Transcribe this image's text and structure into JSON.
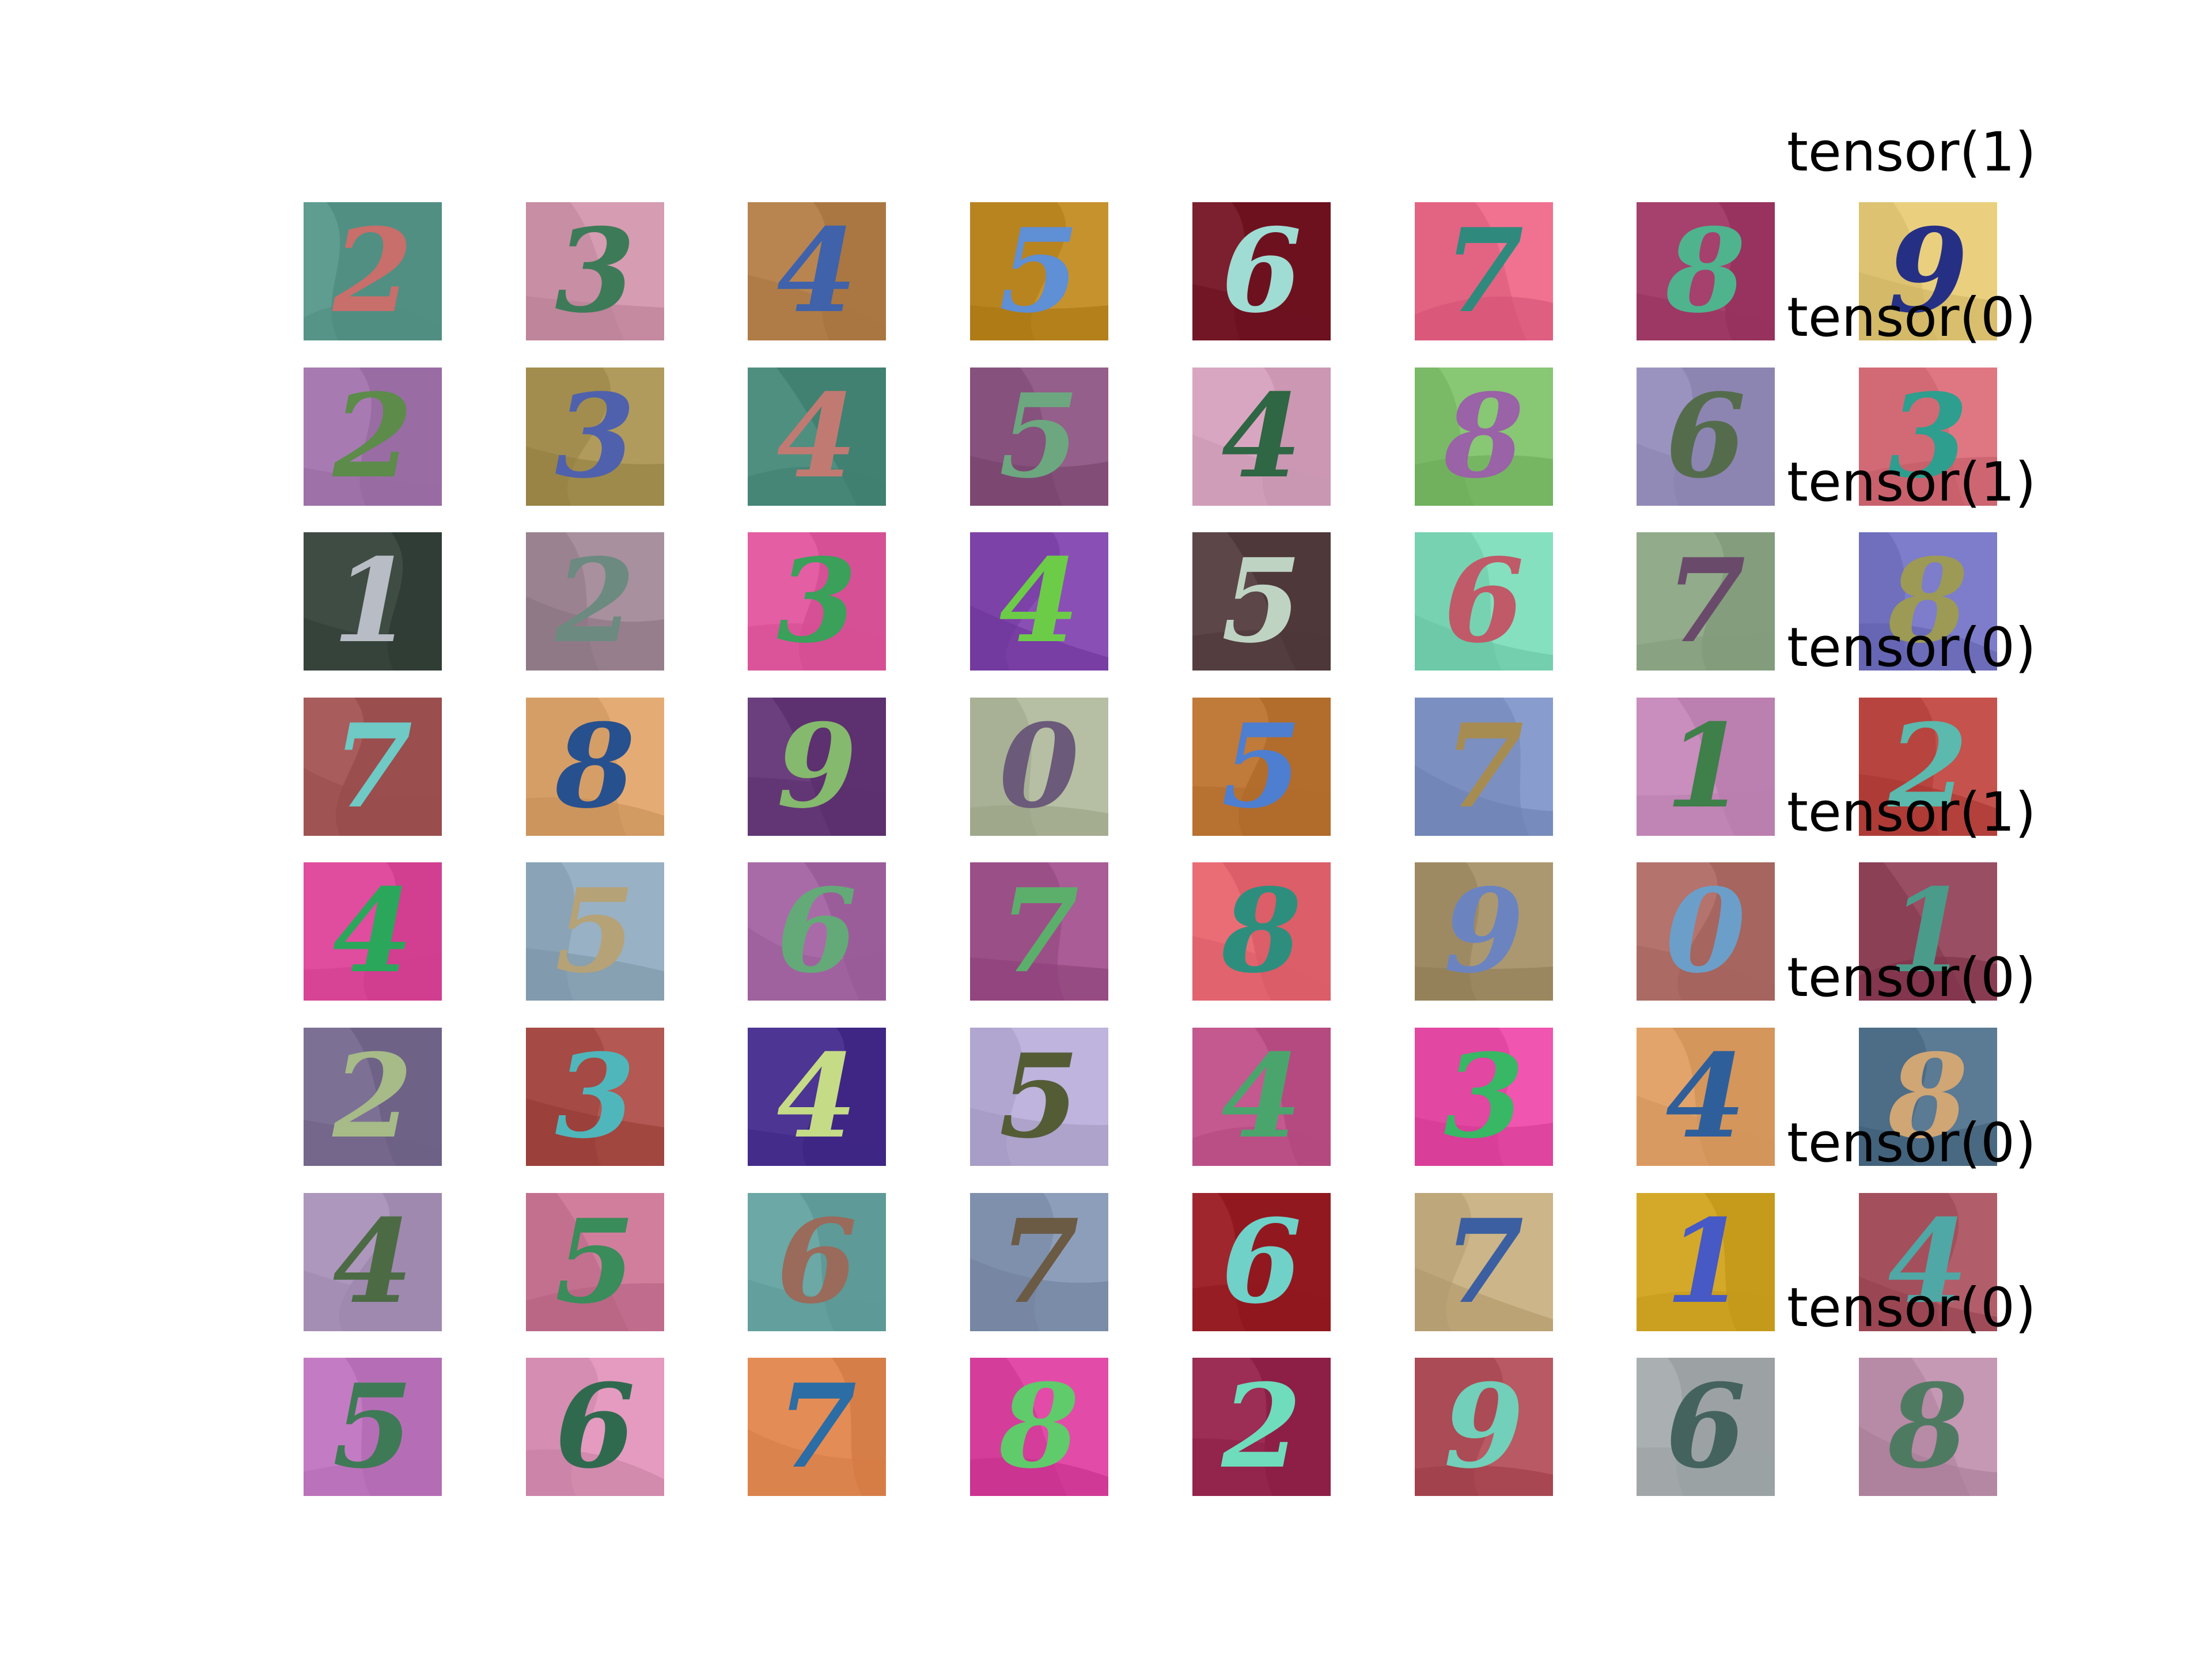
{
  "labels": [
    "tensor(1)",
    "tensor(0)",
    "tensor(1)",
    "tensor(0)",
    "tensor(1)",
    "tensor(0)",
    "tensor(0)",
    "tensor(0)"
  ],
  "tiles": [
    [
      {
        "digit": "2",
        "bg": "#5f9d91",
        "fg": "#c86e6b"
      },
      {
        "digit": "3",
        "bg": "#c88ea3",
        "fg": "#3d7b58"
      },
      {
        "digit": "4",
        "bg": "#b88550",
        "fg": "#3f62ab"
      },
      {
        "digit": "5",
        "bg": "#b88420",
        "fg": "#5f8fd4"
      },
      {
        "digit": "6",
        "bg": "#7c1f2e",
        "fg": "#9fdcd3"
      },
      {
        "digit": "7",
        "bg": "#e36383",
        "fg": "#2f8a7d"
      },
      {
        "digit": "8",
        "bg": "#a5416c",
        "fg": "#4fb38e"
      },
      {
        "digit": "9",
        "bg": "#dcc271",
        "fg": "#253085"
      }
    ],
    [
      {
        "digit": "2",
        "bg": "#a77bb2",
        "fg": "#5c8b4a"
      },
      {
        "digit": "3",
        "bg": "#a28d4e",
        "fg": "#4f61ad"
      },
      {
        "digit": "4",
        "bg": "#4f8f80",
        "fg": "#c17a72"
      },
      {
        "digit": "5",
        "bg": "#86517c",
        "fg": "#6ca77f"
      },
      {
        "digit": "4",
        "bg": "#d9a6c1",
        "fg": "#2f6644"
      },
      {
        "digit": "8",
        "bg": "#7ab966",
        "fg": "#9a62a7"
      },
      {
        "digit": "6",
        "bg": "#9b93bf",
        "fg": "#546c4c"
      },
      {
        "digit": "3",
        "bg": "#d16a75",
        "fg": "#2e9e8e"
      }
    ],
    [
      {
        "digit": "1",
        "bg": "#3f4c44",
        "fg": "#b8bcc5"
      },
      {
        "digit": "2",
        "bg": "#9a8290",
        "fg": "#6c8a7f"
      },
      {
        "digit": "3",
        "bg": "#e45ea4",
        "fg": "#3aa05a"
      },
      {
        "digit": "4",
        "bg": "#7c42a7",
        "fg": "#6ccc48"
      },
      {
        "digit": "5",
        "bg": "#5c4648",
        "fg": "#bfd3c3"
      },
      {
        "digit": "6",
        "bg": "#77d2b1",
        "fg": "#c05a68"
      },
      {
        "digit": "7",
        "bg": "#92ab8b",
        "fg": "#6a4a6a"
      },
      {
        "digit": "8",
        "bg": "#6f6fbd",
        "fg": "#9c9a55"
      }
    ],
    [
      {
        "digit": "7",
        "bg": "#a85c5c",
        "fg": "#6fc9c5"
      },
      {
        "digit": "8",
        "bg": "#d59e66",
        "fg": "#27508f"
      },
      {
        "digit": "9",
        "bg": "#6b3f7d",
        "fg": "#85b96d"
      },
      {
        "digit": "0",
        "bg": "#a8b195",
        "fg": "#6b5a79"
      },
      {
        "digit": "5",
        "bg": "#c07a3a",
        "fg": "#4e7ecf"
      },
      {
        "digit": "7",
        "bg": "#7b8fc0",
        "fg": "#a78c52"
      },
      {
        "digit": "1",
        "bg": "#c98dbe",
        "fg": "#3f7f4a"
      },
      {
        "digit": "2",
        "bg": "#b7443f",
        "fg": "#5bb9ad"
      }
    ],
    [
      {
        "digit": "4",
        "bg": "#e04d9e",
        "fg": "#2aa75b"
      },
      {
        "digit": "5",
        "bg": "#8aa3b6",
        "fg": "#b5a277"
      },
      {
        "digit": "6",
        "bg": "#a96ba8",
        "fg": "#64a978"
      },
      {
        "digit": "7",
        "bg": "#9b4f87",
        "fg": "#5cae6b"
      },
      {
        "digit": "8",
        "bg": "#ea6d76",
        "fg": "#2e8e7e"
      },
      {
        "digit": "9",
        "bg": "#9e8a62",
        "fg": "#6b84c0"
      },
      {
        "digit": "0",
        "bg": "#b4736d",
        "fg": "#6b9fc9"
      },
      {
        "digit": "1",
        "bg": "#8c4056",
        "fg": "#4b9b8a"
      }
    ],
    [
      {
        "digit": "2",
        "bg": "#7d7095",
        "fg": "#a6bb88"
      },
      {
        "digit": "3",
        "bg": "#a54a45",
        "fg": "#4fb7bb"
      },
      {
        "digit": "4",
        "bg": "#4d3593",
        "fg": "#c5db86"
      },
      {
        "digit": "5",
        "bg": "#b0a6cf",
        "fg": "#545c36"
      },
      {
        "digit": "4",
        "bg": "#c3598f",
        "fg": "#4aa56d"
      },
      {
        "digit": "3",
        "bg": "#e247a1",
        "fg": "#38b765"
      },
      {
        "digit": "4",
        "bg": "#e2a46a",
        "fg": "#2f5f9b"
      },
      {
        "digit": "8",
        "bg": "#4d6c86",
        "fg": "#d0a675"
      }
    ],
    [
      {
        "digit": "4",
        "bg": "#ae97bd",
        "fg": "#4c6b45"
      },
      {
        "digit": "5",
        "bg": "#c3708f",
        "fg": "#3a8c5a"
      },
      {
        "digit": "6",
        "bg": "#6ca8a5",
        "fg": "#9a6a5b"
      },
      {
        "digit": "7",
        "bg": "#7f90ac",
        "fg": "#6b5a44"
      },
      {
        "digit": "6",
        "bg": "#a0262d",
        "fg": "#6fd1c8"
      },
      {
        "digit": "7",
        "bg": "#bea77a",
        "fg": "#3c5fa1"
      },
      {
        "digit": "1",
        "bg": "#d4a92a",
        "fg": "#4759c5"
      },
      {
        "digit": "4",
        "bg": "#a4505c",
        "fg": "#4fa8a5"
      }
    ],
    [
      {
        "digit": "5",
        "bg": "#c37cc3",
        "fg": "#3f7a56"
      },
      {
        "digit": "6",
        "bg": "#d58db1",
        "fg": "#2f6a4f"
      },
      {
        "digit": "7",
        "bg": "#e48c55",
        "fg": "#2b6da4"
      },
      {
        "digit": "8",
        "bg": "#d43e9a",
        "fg": "#5fcb6a"
      },
      {
        "digit": "2",
        "bg": "#9c2d55",
        "fg": "#6fdcbc"
      },
      {
        "digit": "9",
        "bg": "#ab4b55",
        "fg": "#72cfb9"
      },
      {
        "digit": "6",
        "bg": "#aab0b2",
        "fg": "#45635e"
      },
      {
        "digit": "8",
        "bg": "#b78aa6",
        "fg": "#4f7a62"
      }
    ]
  ]
}
